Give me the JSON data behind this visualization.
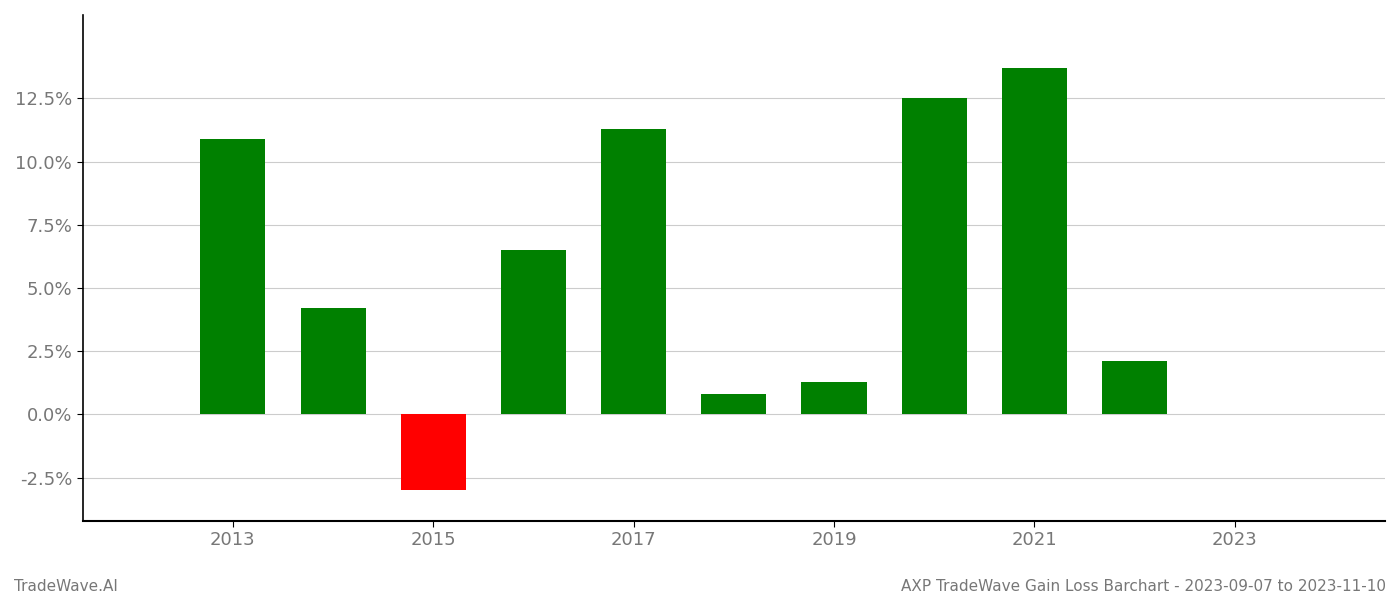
{
  "years": [
    2013,
    2014,
    2015,
    2016,
    2017,
    2018,
    2019,
    2020,
    2021,
    2022,
    2023
  ],
  "values": [
    0.109,
    0.042,
    -0.03,
    0.065,
    0.113,
    0.008,
    0.013,
    0.125,
    0.137,
    0.021,
    null
  ],
  "bar_colors": [
    "#008000",
    "#008000",
    "#ff0000",
    "#008000",
    "#008000",
    "#008000",
    "#008000",
    "#008000",
    "#008000",
    "#008000",
    null
  ],
  "title": "AXP TradeWave Gain Loss Barchart - 2023-09-07 to 2023-11-10",
  "watermark": "TradeWave.AI",
  "ylim_min": -0.042,
  "ylim_max": 0.158,
  "yticks": [
    -0.025,
    0.0,
    0.025,
    0.05,
    0.075,
    0.1,
    0.125
  ],
  "xticks": [
    2013,
    2015,
    2017,
    2019,
    2021,
    2023
  ],
  "background_color": "#ffffff",
  "grid_color": "#cccccc",
  "bar_width": 0.65
}
